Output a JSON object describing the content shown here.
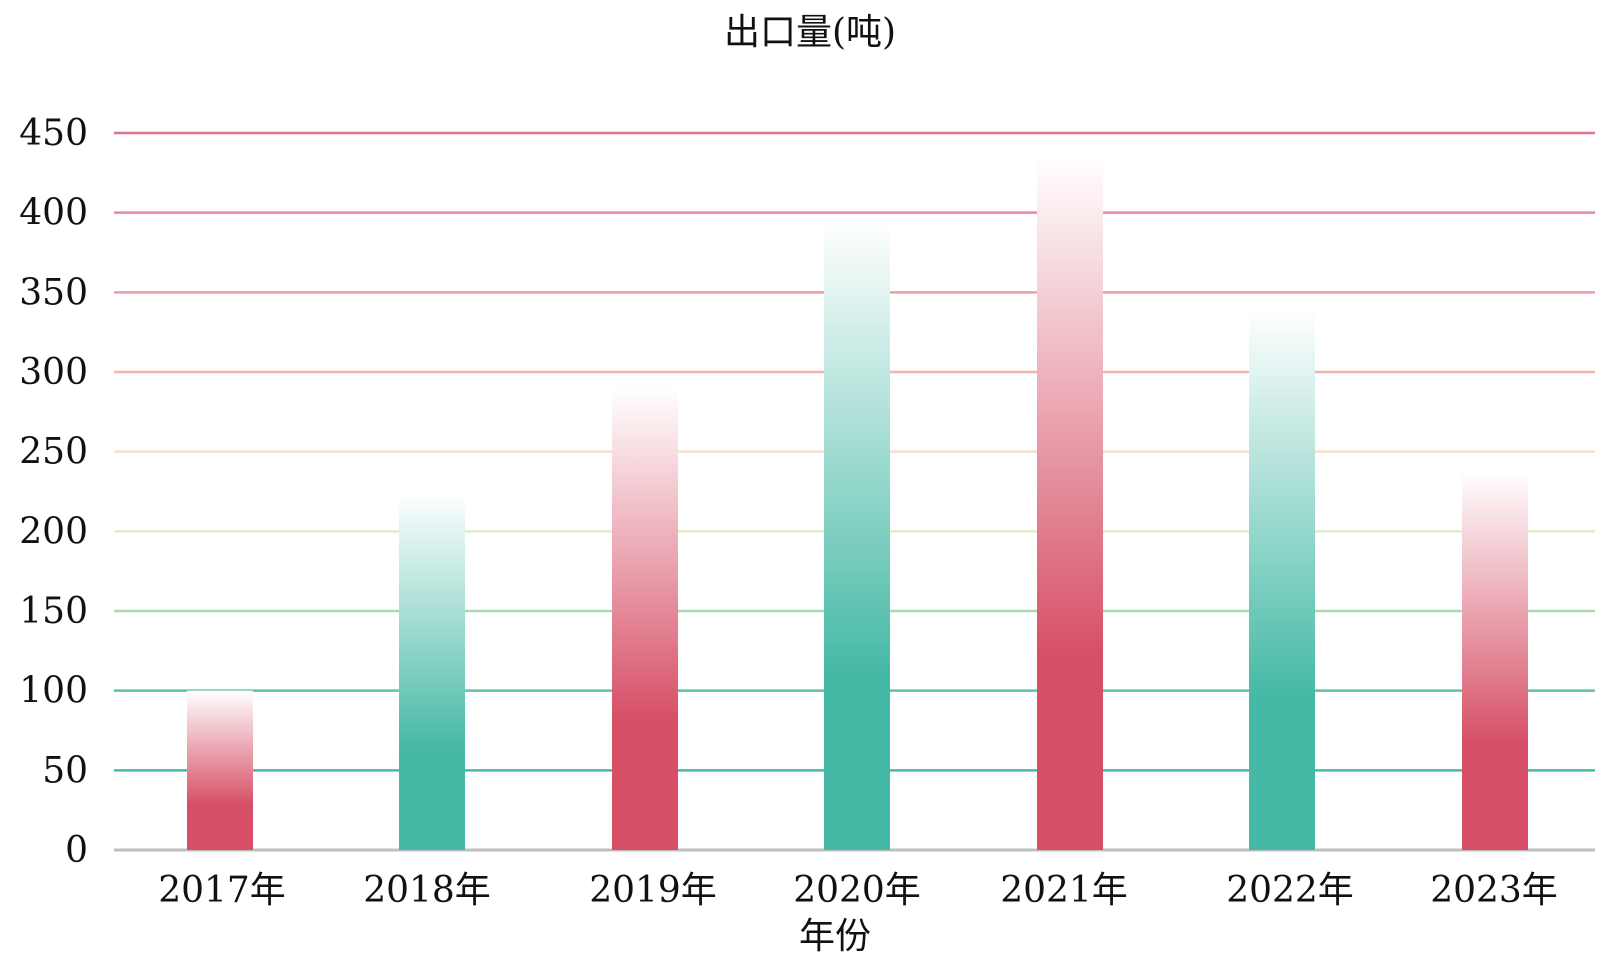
{
  "chart_data": {
    "type": "bar",
    "title": "出口量(吨)",
    "xlabel": "年份",
    "ylabel": "",
    "categories": [
      "2017年",
      "2018年",
      "2019年",
      "2020年",
      "2021年",
      "2022年",
      "2023年"
    ],
    "values": [
      100,
      225,
      290,
      395,
      435,
      340,
      238
    ],
    "ylim": [
      0,
      450
    ],
    "yticks": [
      0,
      50,
      100,
      150,
      200,
      250,
      300,
      350,
      400,
      450
    ],
    "grid": true,
    "legend": "none",
    "colors": {
      "bar_red": "#d64f66",
      "bar_teal": "#45b9a5",
      "bar_top": "#ffffff"
    },
    "gridline_colors": [
      "#bfbfbf",
      "#45b9a5",
      "#5fc0a8",
      "#a9dbb3",
      "#e2edc6",
      "#f7dec9",
      "#f1b5b0",
      "#eb9fa5",
      "#e6899a",
      "#e0758a"
    ]
  }
}
